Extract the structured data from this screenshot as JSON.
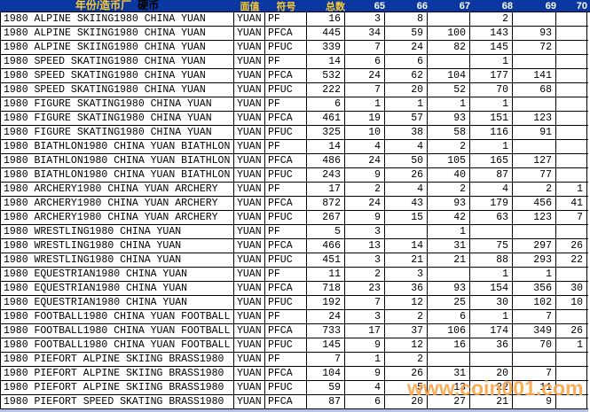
{
  "header": {
    "year_mint_label": "年份/造币厂",
    "coin_label": "硬币",
    "face_value_label": "面值",
    "symbol_label": "符号",
    "total_label": "总数",
    "grade_cols": [
      "65",
      "66",
      "67",
      "68",
      "69",
      "70"
    ]
  },
  "watermark": "www.coin001.com",
  "colors": {
    "header_bg": "#0a38a0",
    "header_chinese_text": "#ffcc33",
    "header_coin_text": "#000000",
    "header_grade_text": "#ffffff",
    "grid_line": "#000000",
    "cell_text": "#000000",
    "watermark_text": "#f9a74e",
    "partial_row_bg": "#b6c2e6"
  },
  "rows": [
    {
      "name": "1980 ALPINE SKIING1980 CHINA YUAN",
      "face": "YUAN",
      "sym": "PF",
      "total": "16",
      "g": [
        "3",
        "8",
        "",
        "2",
        "",
        ""
      ]
    },
    {
      "name": "1980 ALPINE SKIING1980 CHINA YUAN",
      "face": "YUAN",
      "sym": "PFCA",
      "total": "445",
      "g": [
        "34",
        "59",
        "100",
        "143",
        "93",
        ""
      ]
    },
    {
      "name": "1980 ALPINE SKIING1980 CHINA YUAN",
      "face": "YUAN",
      "sym": "PFUC",
      "total": "339",
      "g": [
        "7",
        "24",
        "82",
        "145",
        "72",
        ""
      ]
    },
    {
      "name": "1980 SPEED SKATING1980 CHINA YUAN",
      "face": "YUAN",
      "sym": "PF",
      "total": "14",
      "g": [
        "6",
        "6",
        "",
        "1",
        "",
        ""
      ]
    },
    {
      "name": "1980 SPEED SKATING1980 CHINA YUAN",
      "face": "YUAN",
      "sym": "PFCA",
      "total": "532",
      "g": [
        "24",
        "62",
        "104",
        "177",
        "141",
        ""
      ]
    },
    {
      "name": "1980 SPEED SKATING1980 CHINA YUAN",
      "face": "YUAN",
      "sym": "PFUC",
      "total": "222",
      "g": [
        "7",
        "20",
        "52",
        "70",
        "68",
        ""
      ]
    },
    {
      "name": "1980 FIGURE SKATING1980 CHINA YUAN",
      "face": "YUAN",
      "sym": "PF",
      "total": "6",
      "g": [
        "1",
        "1",
        "1",
        "1",
        "",
        ""
      ]
    },
    {
      "name": "1980 FIGURE SKATING1980 CHINA YUAN",
      "face": "YUAN",
      "sym": "PFCA",
      "total": "461",
      "g": [
        "19",
        "57",
        "93",
        "151",
        "123",
        ""
      ]
    },
    {
      "name": "1980 FIGURE SKATING1980 CHINA YUAN",
      "face": "YUAN",
      "sym": "PFUC",
      "total": "325",
      "g": [
        "10",
        "38",
        "58",
        "116",
        "91",
        ""
      ]
    },
    {
      "name": "1980 BIATHLON1980 CHINA YUAN BIATHLON",
      "face": "YUAN",
      "sym": "PF",
      "total": "14",
      "g": [
        "4",
        "4",
        "2",
        "1",
        "",
        ""
      ]
    },
    {
      "name": "1980 BIATHLON1980 CHINA YUAN BIATHLON",
      "face": "YUAN",
      "sym": "PFCA",
      "total": "486",
      "g": [
        "24",
        "50",
        "105",
        "165",
        "127",
        ""
      ]
    },
    {
      "name": "1980 BIATHLON1980 CHINA YUAN BIATHLON",
      "face": "YUAN",
      "sym": "PFUC",
      "total": "243",
      "g": [
        "9",
        "26",
        "40",
        "87",
        "77",
        ""
      ]
    },
    {
      "name": "1980 ARCHERY1980 CHINA YUAN ARCHERY",
      "face": "YUAN",
      "sym": "PF",
      "total": "17",
      "g": [
        "2",
        "4",
        "2",
        "4",
        "2",
        "1"
      ]
    },
    {
      "name": "1980 ARCHERY1980 CHINA YUAN ARCHERY",
      "face": "YUAN",
      "sym": "PFCA",
      "total": "872",
      "g": [
        "24",
        "43",
        "93",
        "179",
        "456",
        "41"
      ]
    },
    {
      "name": "1980 ARCHERY1980 CHINA YUAN ARCHERY",
      "face": "YUAN",
      "sym": "PFUC",
      "total": "267",
      "g": [
        "9",
        "15",
        "42",
        "63",
        "123",
        "7"
      ]
    },
    {
      "name": "1980 WRESTLING1980 CHINA YUAN",
      "face": "YUAN",
      "sym": "PF",
      "total": "5",
      "g": [
        "3",
        "",
        "1",
        "",
        "",
        ""
      ]
    },
    {
      "name": "1980 WRESTLING1980 CHINA YUAN",
      "face": "YUAN",
      "sym": "PFCA",
      "total": "466",
      "g": [
        "13",
        "14",
        "31",
        "75",
        "297",
        "26"
      ]
    },
    {
      "name": "1980 WRESTLING1980 CHINA YUAN",
      "face": "YUAN",
      "sym": "PFUC",
      "total": "451",
      "g": [
        "3",
        "21",
        "21",
        "88",
        "293",
        "22"
      ]
    },
    {
      "name": "1980 EQUESTRIAN1980 CHINA YUAN",
      "face": "YUAN",
      "sym": "PF",
      "total": "11",
      "g": [
        "2",
        "3",
        "",
        "1",
        "1",
        ""
      ]
    },
    {
      "name": "1980 EQUESTRIAN1980 CHINA YUAN",
      "face": "YUAN",
      "sym": "PFCA",
      "total": "718",
      "g": [
        "23",
        "36",
        "93",
        "154",
        "356",
        "30"
      ]
    },
    {
      "name": "1980 EQUESTRIAN1980 CHINA YUAN",
      "face": "YUAN",
      "sym": "PFUC",
      "total": "192",
      "g": [
        "7",
        "12",
        "25",
        "30",
        "102",
        "10"
      ]
    },
    {
      "name": "1980 FOOTBALL1980 CHINA YUAN FOOTBALL",
      "face": "YUAN",
      "sym": "PF",
      "total": "24",
      "g": [
        "3",
        "2",
        "6",
        "1",
        "7",
        ""
      ]
    },
    {
      "name": "1980 FOOTBALL1980 CHINA YUAN FOOTBALL",
      "face": "YUAN",
      "sym": "PFCA",
      "total": "733",
      "g": [
        "17",
        "37",
        "106",
        "174",
        "349",
        "26"
      ]
    },
    {
      "name": "1980 FOOTBALL1980 CHINA YUAN FOOTBALL",
      "face": "YUAN",
      "sym": "PFUC",
      "total": "145",
      "g": [
        "9",
        "12",
        "16",
        "36",
        "70",
        "1"
      ]
    },
    {
      "name": "1980 PIEFORT ALPINE SKIING BRASS1980",
      "face": "YUAN",
      "sym": "PF",
      "total": "7",
      "g": [
        "1",
        "2",
        "",
        "",
        "",
        ""
      ]
    },
    {
      "name": "1980 PIEFORT ALPINE SKIING BRASS1980",
      "face": "YUAN",
      "sym": "PFCA",
      "total": "104",
      "g": [
        "9",
        "26",
        "31",
        "20",
        "7",
        ""
      ]
    },
    {
      "name": "1980 PIEFORT ALPINE SKIING BRASS1980",
      "face": "YUAN",
      "sym": "PFUC",
      "total": "59",
      "g": [
        "4",
        "5",
        "13",
        "22",
        "11",
        ""
      ]
    },
    {
      "name": "1980 PIEFORT SPEED SKATING BRASS1980",
      "face": "YUAN",
      "sym": "PFCA",
      "total": "87",
      "g": [
        "6",
        "20",
        "27",
        "21",
        "9",
        ""
      ]
    }
  ]
}
